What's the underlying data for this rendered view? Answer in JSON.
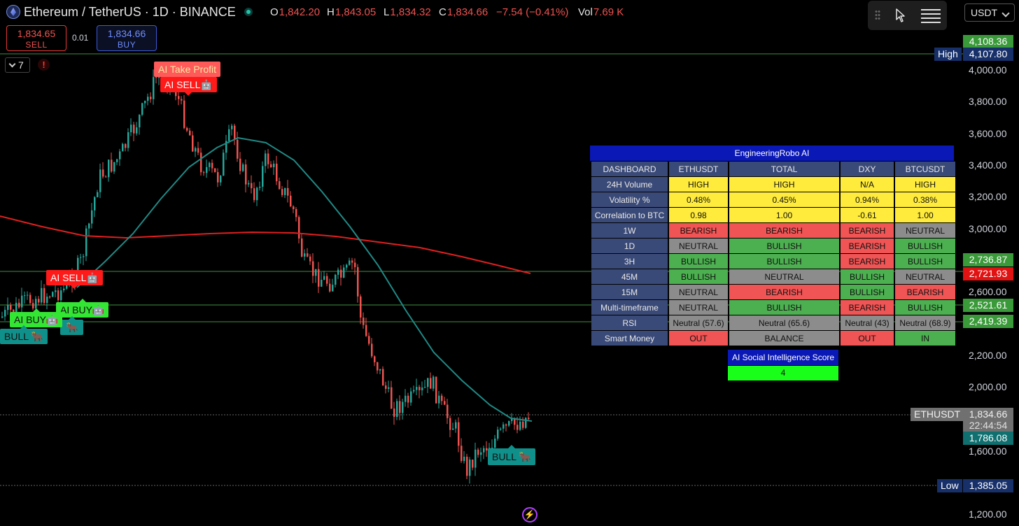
{
  "header": {
    "symbol_title": "Ethereum / TetherUS · 1D · BINANCE",
    "ohlc": {
      "o_key": "O",
      "o_val": "1,842.20",
      "h_key": "H",
      "h_val": "1,843.05",
      "l_key": "L",
      "l_val": "1,834.32",
      "c_key": "C",
      "c_val": "1,834.66",
      "change": "−7.54 (−0.41%)",
      "vol_key": "Vol",
      "vol_val": "7.69 K"
    },
    "currency": "USDT"
  },
  "trade": {
    "sell_price": "1,834.65",
    "sell_label": "SELL",
    "spread": "0.01",
    "buy_price": "1,834.66",
    "buy_label": "BUY"
  },
  "indicators_count": "7",
  "warning_glyph": "!",
  "price_axis": {
    "ticks": [
      "4,000.00",
      "3,800.00",
      "3,600.00",
      "3,400.00",
      "3,200.00",
      "3,000.00",
      "2,600.00",
      "2,200.00",
      "2,000.00",
      "1,600.00",
      "1,200.00"
    ],
    "top_label": "4,108.36",
    "high_label": "High",
    "high_value": "4,107.80",
    "level_2736": "2,736.87",
    "level_2721": "2,721.93",
    "level_2521": "2,521.61",
    "level_2419": "2,419.39",
    "symbol_label": "ETHUSDT",
    "last_price": "1,834.66",
    "countdown": "22:44:54",
    "level_1786": "1,786.08",
    "low_label": "Low",
    "low_value": "1,385.05"
  },
  "signals": {
    "ai_take_profit": "AI Take Profit",
    "ai_sell_top": "AI SELL🤖",
    "ai_sell_left": "AI SELL🤖",
    "ai_buy_1": "AI BUY🤖",
    "ai_buy_2": "AI BUY🤖",
    "bull_left": "BULL 🐂",
    "bull_left_2": "🐂",
    "bull_bottom": "BULL 🐂"
  },
  "dashboard": {
    "title": "EngineeringRobo AI",
    "columns": [
      "DASHBOARD",
      "ETHUSDT",
      "TOTAL",
      "DXY",
      "BTCUSDT"
    ],
    "rows": [
      {
        "label": "24H Volume",
        "cells": [
          "HIGH",
          "HIGH",
          "N/A",
          "HIGH"
        ]
      },
      {
        "label": "Volatility %",
        "cells": [
          "0.48%",
          "0.45%",
          "0.94%",
          "0.38%"
        ]
      },
      {
        "label": "Correlation to BTC",
        "cells": [
          "0.98",
          "1.00",
          "-0.61",
          "1.00"
        ]
      },
      {
        "label": "1W",
        "cells": [
          "BEARISH",
          "BEARISH",
          "BEARISH",
          "NEUTRAL"
        ]
      },
      {
        "label": "1D",
        "cells": [
          "NEUTRAL",
          "BULLISH",
          "BEARISH",
          "BULLISH"
        ]
      },
      {
        "label": "3H",
        "cells": [
          "BULLISH",
          "BULLISH",
          "BEARISH",
          "BULLISH"
        ]
      },
      {
        "label": "45M",
        "cells": [
          "BULLISH",
          "NEUTRAL",
          "BULLISH",
          "NEUTRAL"
        ]
      },
      {
        "label": "15M",
        "cells": [
          "NEUTRAL",
          "BEARISH",
          "BULLISH",
          "BEARISH"
        ]
      },
      {
        "label": "Multi-timeframe",
        "cells": [
          "NEUTRAL",
          "BULLISH",
          "BEARISH",
          "BULLISH"
        ]
      },
      {
        "label": "RSI",
        "cells": [
          "Neutral (57.6)",
          "Neutral (65.6)",
          "Neutral (43)",
          "Neutral (68.9)"
        ]
      },
      {
        "label": "Smart Money",
        "cells": [
          "OUT",
          "BALANCE",
          "OUT",
          "IN"
        ]
      }
    ],
    "ai_score_label": "AI Social Intelligence Score",
    "ai_score_value": "4"
  },
  "colors": {
    "up": "#26a69a",
    "down": "#ef5350",
    "ma_slow": "#e01f1f",
    "ma_fast": "#1f8a86",
    "level_line": "#3f8f3f"
  },
  "icons": {
    "logo": "ethereum-logo-icon",
    "status": "market-open-dot-icon",
    "drag": "grip-icon",
    "cursor": "cursor-icon",
    "menu": "menu-icon",
    "warning": "warning-icon",
    "bolt": "bolt-icon"
  }
}
